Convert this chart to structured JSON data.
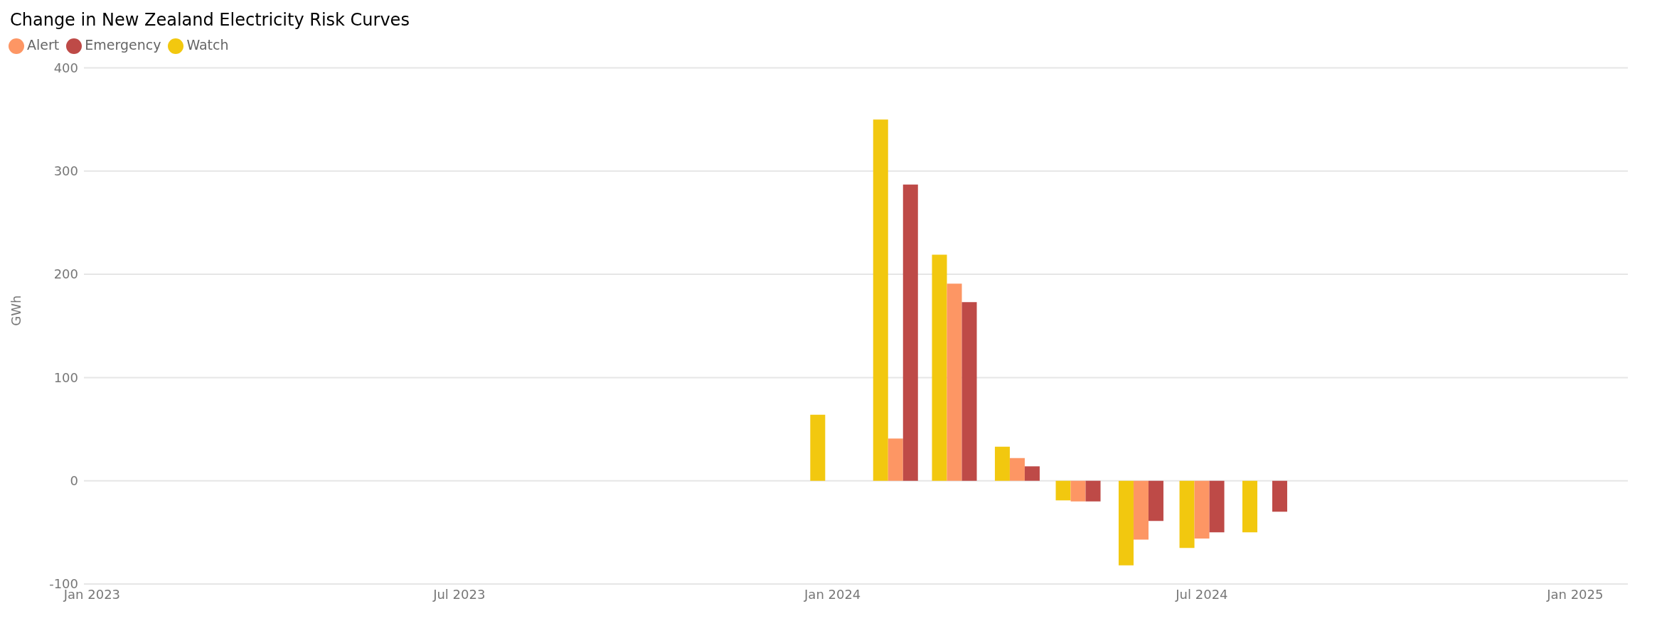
{
  "chart_data": {
    "type": "bar",
    "title": "Change in New Zealand Electricity Risk Curves",
    "ylabel": "GWh",
    "x": [
      "2024-01",
      "2024-02",
      "2024-03",
      "2024-04",
      "2024-05",
      "2024-06",
      "2024-07",
      "2024-08"
    ],
    "series": [
      {
        "name": "Watch",
        "color": "#f2c80f",
        "values": [
          64,
          350,
          219,
          33,
          -19,
          -82,
          -65,
          -50
        ]
      },
      {
        "name": "Alert",
        "color": "#fd9664",
        "values": [
          null,
          41,
          191,
          22,
          -20,
          -57,
          -56,
          null
        ]
      },
      {
        "name": "Emergency",
        "color": "#be4a47",
        "values": [
          null,
          287,
          173,
          14,
          -20,
          -39,
          -50,
          -30
        ]
      }
    ],
    "xlim": [
      "2022-12-28",
      "2025-01-27"
    ],
    "xticks": [
      {
        "value": "2023-01",
        "label": "Jan 2023"
      },
      {
        "value": "2023-07",
        "label": "Jul 2023"
      },
      {
        "value": "2024-01",
        "label": "Jan 2024"
      },
      {
        "value": "2024-07",
        "label": "Jul 2024"
      },
      {
        "value": "2025-01",
        "label": "Jan 2025"
      }
    ],
    "ylim": [
      -100,
      400
    ],
    "yticks": [
      -100,
      0,
      100,
      200,
      300,
      400
    ],
    "grid": "y",
    "legend": "top left"
  }
}
